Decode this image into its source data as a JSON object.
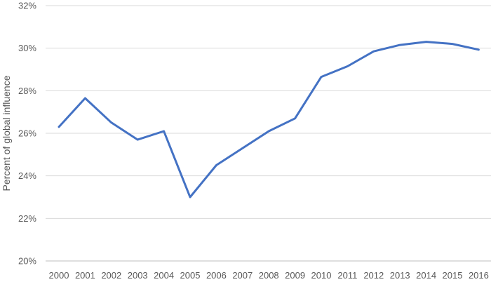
{
  "chart_data": {
    "type": "line",
    "title": "",
    "xlabel": "",
    "ylabel": "Percent of global influence",
    "x": [
      "2000",
      "2001",
      "2002",
      "2003",
      "2004",
      "2005",
      "2006",
      "2007",
      "2008",
      "2009",
      "2010",
      "2011",
      "2012",
      "2013",
      "2014",
      "2015",
      "2016"
    ],
    "series": [
      {
        "values": [
          26.3,
          27.65,
          26.5,
          25.7,
          26.1,
          23.0,
          24.5,
          25.3,
          26.1,
          26.7,
          28.65,
          29.15,
          29.85,
          30.15,
          30.3,
          30.2,
          29.93
        ],
        "color": "#4472c4"
      }
    ],
    "ylim": [
      20,
      32
    ],
    "y_ticks": [
      20,
      22,
      24,
      26,
      28,
      30,
      32
    ],
    "y_tick_format": "percent",
    "grid": true,
    "legend": "none"
  }
}
